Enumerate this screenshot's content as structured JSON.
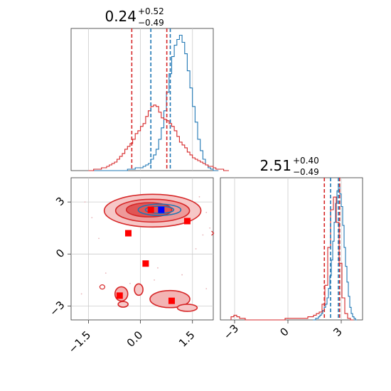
{
  "chart_data": [
    {
      "type": "histogram",
      "panel": "top-left",
      "title": {
        "base": "0.24",
        "plus": "+0.52",
        "minus": "−0.49"
      },
      "xlim": [
        -2.0,
        2.1
      ],
      "x_ticks": [
        -1.5,
        0.0,
        1.5
      ],
      "grid": true,
      "series": [
        {
          "color": "#1f77b4",
          "bin_start": -1.5,
          "bin_width": 0.075,
          "values": [
            0,
            0,
            0,
            0,
            0,
            0,
            0,
            0,
            0,
            0,
            0,
            0,
            0,
            0,
            0,
            1,
            1,
            1,
            2,
            2,
            2,
            3,
            4,
            5,
            8,
            11,
            15,
            22,
            30,
            42,
            55,
            68,
            80,
            88,
            92,
            95,
            90,
            82,
            70,
            58,
            45,
            34,
            22,
            14,
            8,
            4,
            2,
            1,
            0,
            0
          ]
        },
        {
          "color": "#d62728",
          "bin_start": -1.5,
          "bin_width": 0.075,
          "values": [
            0,
            0,
            1,
            1,
            1,
            2,
            2,
            3,
            4,
            5,
            6,
            8,
            10,
            12,
            15,
            17,
            19,
            22,
            26,
            28,
            31,
            33,
            38,
            42,
            45,
            46,
            45,
            41,
            37,
            36,
            35,
            33,
            31,
            28,
            24,
            20,
            18,
            16,
            13,
            11,
            9,
            8,
            7,
            6,
            5,
            4,
            3,
            3,
            2,
            1,
            1,
            1,
            0,
            0
          ]
        }
      ],
      "quantile_lines": [
        {
          "color": "#d62728",
          "x": -0.25
        },
        {
          "color": "#d62728",
          "x": 0.76
        },
        {
          "color": "#1f77b4",
          "x": 0.3
        },
        {
          "color": "#1f77b4",
          "x": 0.86
        }
      ]
    },
    {
      "type": "contour-scatter",
      "panel": "bottom-left",
      "xlim": [
        -2.0,
        2.1
      ],
      "ylim": [
        -3.8,
        4.4
      ],
      "x_ticks": [
        -1.5,
        0.0,
        1.5
      ],
      "y_ticks": [
        -3,
        0,
        3
      ],
      "grid": true,
      "red_markers": [
        {
          "x": 0.3,
          "y": 2.55
        },
        {
          "x": -0.35,
          "y": 1.2
        },
        {
          "x": 1.35,
          "y": 1.9
        },
        {
          "x": 0.15,
          "y": -0.55
        },
        {
          "x": -0.6,
          "y": -2.4
        },
        {
          "x": 0.9,
          "y": -2.7
        }
      ],
      "blue_marker": {
        "x": 0.6,
        "y": 2.55
      }
    },
    {
      "type": "histogram",
      "panel": "bottom-right",
      "title": {
        "base": "2.51",
        "plus": "+0.40",
        "minus": "−0.49"
      },
      "xlim": [
        -3.8,
        4.2
      ],
      "x_ticks": [
        -3,
        0,
        3
      ],
      "grid": true,
      "series": [
        {
          "color": "#1f77b4",
          "bin_start": 1.4,
          "bin_width": 0.08,
          "values": [
            0,
            0,
            1,
            1,
            2,
            3,
            4,
            6,
            8,
            10,
            14,
            20,
            28,
            38,
            50,
            62,
            74,
            82,
            86,
            80,
            72,
            60,
            46,
            34,
            24,
            15,
            8,
            4,
            2,
            1,
            0
          ]
        },
        {
          "color": "#d62728",
          "bin_start": -3.2,
          "bin_width": 0.16,
          "values": [
            2,
            3,
            2,
            1,
            1,
            0,
            0,
            0,
            0,
            0,
            0,
            0,
            0,
            0,
            0,
            0,
            0,
            0,
            0,
            1,
            1,
            1,
            1,
            1,
            1,
            1,
            1,
            2,
            2,
            3,
            4,
            5,
            10,
            22,
            46,
            70,
            78,
            62,
            36,
            14,
            4,
            1,
            0
          ]
        }
      ],
      "quantile_lines": [
        {
          "color": "#d62728",
          "x": 2.05
        },
        {
          "color": "#d62728",
          "x": 2.91
        },
        {
          "color": "#1f77b4",
          "x": 2.4
        },
        {
          "color": "#1f77b4",
          "x": 2.84
        }
      ]
    }
  ]
}
